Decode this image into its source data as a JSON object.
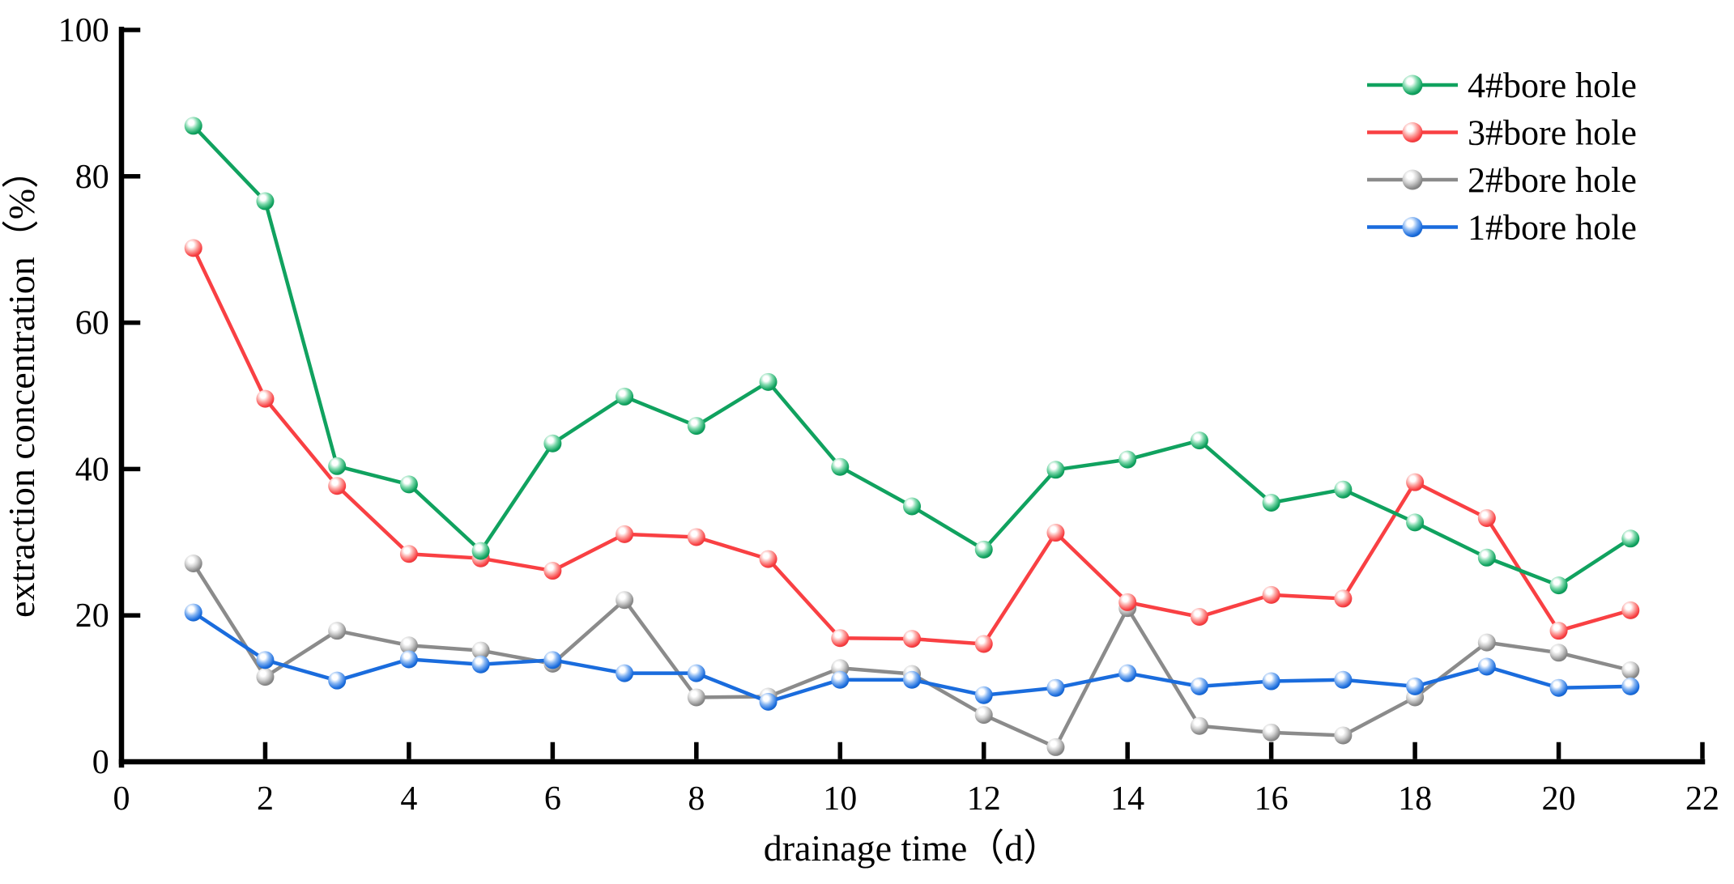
{
  "chart_data": {
    "type": "line",
    "title": "",
    "xlabel": "drainage time（d）",
    "ylabel": "extraction concentration（%）",
    "xlim": [
      0,
      22
    ],
    "ylim": [
      0,
      100
    ],
    "x_ticks": [
      0,
      2,
      4,
      6,
      8,
      10,
      12,
      14,
      16,
      18,
      20,
      22
    ],
    "y_ticks": [
      0,
      20,
      40,
      60,
      80,
      100
    ],
    "grid": false,
    "legend_position": "top-right",
    "marker_style": "shaded-sphere",
    "x": [
      1,
      2,
      3,
      4,
      5,
      6,
      7,
      8,
      9,
      10,
      11,
      12,
      13,
      14,
      15,
      16,
      17,
      18,
      19,
      20,
      21
    ],
    "series": [
      {
        "name": "4#bore hole",
        "color": "#10A25F",
        "color_light": "#7ED9AC",
        "color_dark": "#0A7A47",
        "values": [
          86.9,
          76.6,
          40.4,
          37.9,
          28.8,
          43.5,
          49.9,
          45.9,
          51.9,
          40.3,
          34.9,
          29.0,
          39.9,
          41.3,
          43.9,
          35.4,
          37.2,
          32.7,
          27.9,
          24.1,
          30.5
        ]
      },
      {
        "name": "3#bore hole",
        "color": "#F94043",
        "color_light": "#FCA6A3",
        "color_dark": "#C62A2D",
        "values": [
          70.2,
          49.6,
          37.7,
          28.4,
          27.8,
          26.1,
          31.1,
          30.7,
          27.7,
          16.9,
          16.8,
          16.1,
          31.3,
          21.8,
          19.8,
          22.8,
          22.3,
          38.2,
          33.3,
          17.9,
          20.7
        ]
      },
      {
        "name": "2#bore hole",
        "color": "#8B8B8B",
        "color_light": "#D2D2D2",
        "color_dark": "#676767",
        "values": [
          27.1,
          11.6,
          17.9,
          15.9,
          15.2,
          13.4,
          22.1,
          8.8,
          8.9,
          12.8,
          12.0,
          6.4,
          2.0,
          21.0,
          4.9,
          4.0,
          3.6,
          8.8,
          16.3,
          14.9,
          12.5
        ]
      },
      {
        "name": "1#bore hole",
        "color": "#1A6CDD",
        "color_light": "#86B5F2",
        "color_dark": "#0F4FA0",
        "values": [
          20.4,
          13.9,
          11.1,
          14.0,
          13.3,
          13.9,
          12.1,
          12.1,
          8.2,
          11.2,
          11.2,
          9.1,
          10.1,
          12.1,
          10.3,
          11.0,
          11.2,
          10.3,
          13.0,
          10.1,
          10.3
        ]
      }
    ],
    "legend_items": [
      "4#bore hole",
      "3#bore hole",
      "2#bore hole",
      "1#bore hole"
    ],
    "axis_color": "#000000"
  }
}
